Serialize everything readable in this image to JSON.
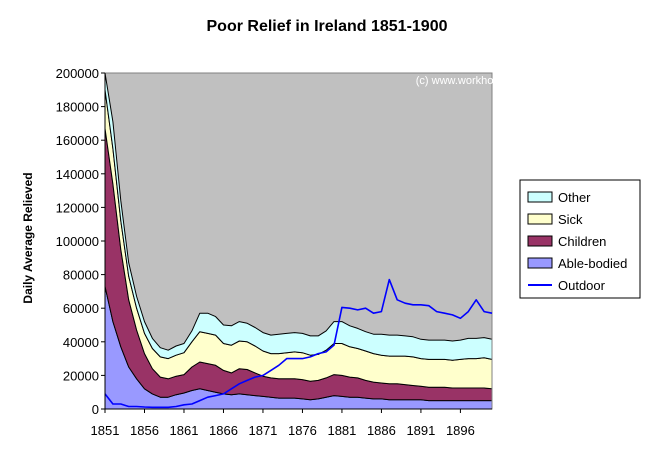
{
  "chart_data": {
    "type": "area",
    "title": "Poor Relief in Ireland 1851-1900",
    "ylabel": "Daily Average Relieved",
    "xlabel": "",
    "watermark": "(c) www.workhouses.org.uk",
    "ylim": [
      0,
      200000
    ],
    "xlim": [
      1851,
      1900
    ],
    "grid": false,
    "legend_position": "right",
    "plot_background": "#c0c0c0",
    "y_ticks": [
      0,
      20000,
      40000,
      60000,
      80000,
      100000,
      120000,
      140000,
      160000,
      180000,
      200000
    ],
    "y_tick_labels": [
      "0",
      "20000",
      "40000",
      "60000",
      "80000",
      "100000",
      "120000",
      "140000",
      "160000",
      "180000",
      "200000"
    ],
    "x_ticks": [
      1851,
      1856,
      1861,
      1866,
      1871,
      1876,
      1881,
      1886,
      1891,
      1896
    ],
    "x_tick_labels": [
      "1851",
      "1856",
      "1861",
      "1866",
      "1871",
      "1876",
      "1881",
      "1886",
      "1891",
      "1896"
    ],
    "x": [
      1851,
      1852,
      1853,
      1854,
      1855,
      1856,
      1857,
      1858,
      1859,
      1860,
      1861,
      1862,
      1863,
      1864,
      1865,
      1866,
      1867,
      1868,
      1869,
      1870,
      1871,
      1872,
      1873,
      1874,
      1875,
      1876,
      1877,
      1878,
      1879,
      1880,
      1881,
      1882,
      1883,
      1884,
      1885,
      1886,
      1887,
      1888,
      1889,
      1890,
      1891,
      1892,
      1893,
      1894,
      1895,
      1896,
      1897,
      1898,
      1899,
      1900
    ],
    "stacked_series": [
      {
        "name": "Able-bodied",
        "color": "#9999ff",
        "values": [
          73000,
          52000,
          37000,
          25000,
          18000,
          12000,
          9000,
          7000,
          7000,
          8500,
          9500,
          11000,
          12000,
          11000,
          10000,
          9000,
          8500,
          9000,
          8500,
          8000,
          7500,
          7000,
          6500,
          6500,
          6500,
          6000,
          5500,
          6000,
          7000,
          8000,
          7500,
          7000,
          7000,
          6500,
          6000,
          6000,
          5500,
          5500,
          5500,
          5500,
          5500,
          5000,
          5000,
          5000,
          5000,
          5000,
          5000,
          5000,
          5000,
          5000
        ]
      },
      {
        "name": "Children",
        "color": "#993366",
        "values": [
          94000,
          82000,
          58000,
          40000,
          29000,
          21000,
          15000,
          12000,
          11000,
          11000,
          11000,
          14000,
          16000,
          16000,
          16000,
          14000,
          13000,
          15000,
          15000,
          13500,
          12000,
          11500,
          11500,
          11500,
          11500,
          11500,
          11000,
          11000,
          11500,
          12500,
          12500,
          12000,
          11500,
          10500,
          10000,
          9500,
          9500,
          9500,
          9000,
          8500,
          8000,
          8000,
          8000,
          8000,
          7500,
          7500,
          7500,
          7500,
          7500,
          7000
        ]
      },
      {
        "name": "Sick",
        "color": "#ffffcc",
        "values": [
          23000,
          21000,
          17000,
          14000,
          13000,
          12000,
          12000,
          12000,
          12000,
          12500,
          13000,
          15000,
          18000,
          18000,
          18000,
          16000,
          16500,
          16500,
          16500,
          16000,
          15000,
          14500,
          15000,
          15500,
          16000,
          16000,
          15500,
          15500,
          16500,
          18500,
          19000,
          18000,
          17500,
          17500,
          17000,
          16500,
          16500,
          16500,
          17000,
          17000,
          16500,
          16500,
          16500,
          16500,
          16500,
          17000,
          17500,
          17500,
          18000,
          17500
        ]
      },
      {
        "name": "Other",
        "color": "#ccffff",
        "values": [
          20000,
          16000,
          12000,
          8000,
          7000,
          7000,
          6000,
          5500,
          5000,
          5500,
          5500,
          6500,
          11000,
          12000,
          11000,
          11000,
          11500,
          11500,
          11000,
          11000,
          11000,
          11000,
          11500,
          11500,
          11500,
          11500,
          11500,
          11000,
          11500,
          13000,
          13000,
          12500,
          12000,
          11500,
          11500,
          12500,
          12500,
          12500,
          12000,
          12000,
          11500,
          11500,
          11500,
          11500,
          11500,
          11500,
          12000,
          12000,
          12000,
          12000
        ]
      }
    ],
    "line_series": [
      {
        "name": "Outdoor",
        "color": "#0000ff",
        "values": [
          9000,
          3000,
          3000,
          1500,
          1500,
          1200,
          1000,
          1000,
          1000,
          1500,
          2500,
          3000,
          5000,
          7000,
          8000,
          9000,
          12000,
          15000,
          17000,
          19000,
          20000,
          23000,
          26000,
          30000,
          30000,
          30000,
          31000,
          33000,
          34000,
          38000,
          60500,
          60000,
          59000,
          60000,
          57000,
          58000,
          77000,
          65000,
          63000,
          62000,
          62000,
          61500,
          58000,
          57000,
          56000,
          54000,
          58000,
          65000,
          58000,
          57000
        ]
      }
    ],
    "legend": [
      "Other",
      "Sick",
      "Children",
      "Able-bodied",
      "Outdoor"
    ]
  }
}
